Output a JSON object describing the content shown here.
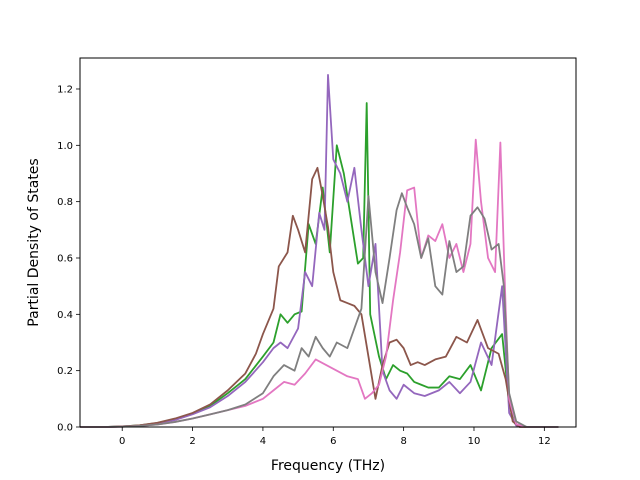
{
  "chart_data": {
    "type": "line",
    "title": "",
    "xlabel": "Frequency (THz)",
    "ylabel": "Partial Density of States",
    "xlim": [
      -1.2,
      12.9
    ],
    "ylim": [
      0.0,
      1.31
    ],
    "x_ticks": [
      "0",
      "2",
      "4",
      "6",
      "8",
      "10",
      "12"
    ],
    "x_tick_values": [
      0,
      2,
      4,
      6,
      8,
      10,
      12
    ],
    "y_ticks": [
      "0.0",
      "0.2",
      "0.4",
      "0.6",
      "0.8",
      "1.0",
      "1.2"
    ],
    "y_tick_values": [
      0.0,
      0.2,
      0.4,
      0.6,
      0.8,
      1.0,
      1.2
    ],
    "grid": false,
    "legend": "none",
    "series": [
      {
        "color": "#2ca02c",
        "points": [
          [
            -1.2,
            0
          ],
          [
            -0.5,
            0
          ],
          [
            0,
            0.002
          ],
          [
            0.5,
            0.006
          ],
          [
            1,
            0.014
          ],
          [
            1.5,
            0.028
          ],
          [
            2,
            0.048
          ],
          [
            2.5,
            0.075
          ],
          [
            3,
            0.12
          ],
          [
            3.5,
            0.17
          ],
          [
            4,
            0.25
          ],
          [
            4.3,
            0.3
          ],
          [
            4.5,
            0.4
          ],
          [
            4.7,
            0.37
          ],
          [
            4.9,
            0.4
          ],
          [
            5.1,
            0.41
          ],
          [
            5.3,
            0.72
          ],
          [
            5.5,
            0.65
          ],
          [
            5.7,
            0.85
          ],
          [
            5.9,
            0.62
          ],
          [
            6.1,
            1.0
          ],
          [
            6.3,
            0.9
          ],
          [
            6.5,
            0.74
          ],
          [
            6.7,
            0.58
          ],
          [
            6.85,
            0.6
          ],
          [
            6.95,
            1.15
          ],
          [
            7.05,
            0.4
          ],
          [
            7.3,
            0.25
          ],
          [
            7.5,
            0.17
          ],
          [
            7.7,
            0.22
          ],
          [
            7.9,
            0.2
          ],
          [
            8.1,
            0.19
          ],
          [
            8.3,
            0.16
          ],
          [
            8.5,
            0.15
          ],
          [
            8.7,
            0.14
          ],
          [
            9,
            0.14
          ],
          [
            9.3,
            0.18
          ],
          [
            9.6,
            0.17
          ],
          [
            9.9,
            0.22
          ],
          [
            10.2,
            0.13
          ],
          [
            10.5,
            0.28
          ],
          [
            10.8,
            0.33
          ],
          [
            11,
            0.08
          ],
          [
            11.2,
            0.01
          ],
          [
            11.5,
            0
          ],
          [
            12.4,
            0
          ]
        ]
      },
      {
        "color": "#9467bd",
        "points": [
          [
            -1.2,
            0
          ],
          [
            -0.5,
            0
          ],
          [
            0,
            0.002
          ],
          [
            0.5,
            0.005
          ],
          [
            1,
            0.012
          ],
          [
            1.5,
            0.025
          ],
          [
            2,
            0.045
          ],
          [
            2.5,
            0.07
          ],
          [
            3,
            0.11
          ],
          [
            3.5,
            0.16
          ],
          [
            4,
            0.23
          ],
          [
            4.3,
            0.28
          ],
          [
            4.5,
            0.3
          ],
          [
            4.7,
            0.28
          ],
          [
            5,
            0.35
          ],
          [
            5.2,
            0.55
          ],
          [
            5.4,
            0.5
          ],
          [
            5.6,
            0.76
          ],
          [
            5.75,
            0.7
          ],
          [
            5.85,
            1.25
          ],
          [
            6,
            0.95
          ],
          [
            6.2,
            0.9
          ],
          [
            6.4,
            0.8
          ],
          [
            6.6,
            0.92
          ],
          [
            6.8,
            0.7
          ],
          [
            7,
            0.5
          ],
          [
            7.2,
            0.65
          ],
          [
            7.4,
            0.2
          ],
          [
            7.6,
            0.13
          ],
          [
            7.8,
            0.1
          ],
          [
            8,
            0.15
          ],
          [
            8.3,
            0.12
          ],
          [
            8.6,
            0.11
          ],
          [
            9,
            0.13
          ],
          [
            9.3,
            0.16
          ],
          [
            9.6,
            0.12
          ],
          [
            9.9,
            0.16
          ],
          [
            10.2,
            0.3
          ],
          [
            10.5,
            0.22
          ],
          [
            10.8,
            0.5
          ],
          [
            11,
            0.05
          ],
          [
            11.2,
            0.005
          ],
          [
            11.5,
            0
          ],
          [
            12.4,
            0
          ]
        ]
      },
      {
        "color": "#8c564b",
        "points": [
          [
            -1.2,
            0
          ],
          [
            -0.5,
            0
          ],
          [
            0,
            0.002
          ],
          [
            0.5,
            0.006
          ],
          [
            1,
            0.015
          ],
          [
            1.5,
            0.03
          ],
          [
            2,
            0.05
          ],
          [
            2.5,
            0.08
          ],
          [
            3,
            0.13
          ],
          [
            3.5,
            0.19
          ],
          [
            3.8,
            0.26
          ],
          [
            4,
            0.33
          ],
          [
            4.3,
            0.42
          ],
          [
            4.45,
            0.57
          ],
          [
            4.7,
            0.62
          ],
          [
            4.85,
            0.75
          ],
          [
            5,
            0.7
          ],
          [
            5.2,
            0.62
          ],
          [
            5.4,
            0.88
          ],
          [
            5.55,
            0.92
          ],
          [
            5.7,
            0.82
          ],
          [
            5.85,
            0.71
          ],
          [
            6,
            0.55
          ],
          [
            6.2,
            0.45
          ],
          [
            6.4,
            0.44
          ],
          [
            6.6,
            0.43
          ],
          [
            6.8,
            0.4
          ],
          [
            7,
            0.25
          ],
          [
            7.2,
            0.1
          ],
          [
            7.4,
            0.22
          ],
          [
            7.6,
            0.3
          ],
          [
            7.8,
            0.31
          ],
          [
            8,
            0.28
          ],
          [
            8.2,
            0.22
          ],
          [
            8.4,
            0.23
          ],
          [
            8.6,
            0.22
          ],
          [
            8.9,
            0.24
          ],
          [
            9.2,
            0.25
          ],
          [
            9.5,
            0.32
          ],
          [
            9.8,
            0.3
          ],
          [
            10.1,
            0.38
          ],
          [
            10.4,
            0.28
          ],
          [
            10.7,
            0.26
          ],
          [
            10.9,
            0.17
          ],
          [
            11.1,
            0.02
          ],
          [
            11.3,
            0
          ],
          [
            12.4,
            0
          ]
        ]
      },
      {
        "color": "#e377c2",
        "points": [
          [
            -1.2,
            0
          ],
          [
            -0.5,
            0
          ],
          [
            0,
            0.001
          ],
          [
            0.5,
            0.004
          ],
          [
            1,
            0.009
          ],
          [
            1.5,
            0.018
          ],
          [
            2,
            0.03
          ],
          [
            2.5,
            0.045
          ],
          [
            3,
            0.06
          ],
          [
            3.5,
            0.075
          ],
          [
            4,
            0.1
          ],
          [
            4.3,
            0.13
          ],
          [
            4.6,
            0.16
          ],
          [
            4.9,
            0.15
          ],
          [
            5.2,
            0.19
          ],
          [
            5.5,
            0.24
          ],
          [
            5.8,
            0.22
          ],
          [
            6.1,
            0.2
          ],
          [
            6.4,
            0.18
          ],
          [
            6.7,
            0.17
          ],
          [
            6.9,
            0.1
          ],
          [
            7.1,
            0.12
          ],
          [
            7.3,
            0.15
          ],
          [
            7.5,
            0.25
          ],
          [
            7.7,
            0.45
          ],
          [
            7.9,
            0.62
          ],
          [
            8.1,
            0.84
          ],
          [
            8.3,
            0.85
          ],
          [
            8.5,
            0.6
          ],
          [
            8.7,
            0.68
          ],
          [
            8.9,
            0.66
          ],
          [
            9.1,
            0.72
          ],
          [
            9.3,
            0.6
          ],
          [
            9.5,
            0.65
          ],
          [
            9.7,
            0.55
          ],
          [
            9.9,
            0.65
          ],
          [
            10.05,
            1.02
          ],
          [
            10.2,
            0.8
          ],
          [
            10.4,
            0.6
          ],
          [
            10.6,
            0.55
          ],
          [
            10.75,
            1.01
          ],
          [
            10.9,
            0.42
          ],
          [
            11,
            0.1
          ],
          [
            11.2,
            0.01
          ],
          [
            11.5,
            0
          ],
          [
            12.4,
            0
          ]
        ]
      },
      {
        "color": "#7f7f7f",
        "points": [
          [
            -1.2,
            0
          ],
          [
            -0.5,
            0
          ],
          [
            0,
            0.001
          ],
          [
            0.5,
            0.004
          ],
          [
            1,
            0.009
          ],
          [
            1.5,
            0.018
          ],
          [
            2,
            0.03
          ],
          [
            2.5,
            0.045
          ],
          [
            3,
            0.06
          ],
          [
            3.5,
            0.08
          ],
          [
            4,
            0.12
          ],
          [
            4.3,
            0.18
          ],
          [
            4.6,
            0.22
          ],
          [
            4.9,
            0.2
          ],
          [
            5.1,
            0.28
          ],
          [
            5.3,
            0.25
          ],
          [
            5.5,
            0.32
          ],
          [
            5.7,
            0.28
          ],
          [
            5.9,
            0.25
          ],
          [
            6.1,
            0.3
          ],
          [
            6.4,
            0.28
          ],
          [
            6.6,
            0.35
          ],
          [
            6.8,
            0.42
          ],
          [
            7,
            0.82
          ],
          [
            7.2,
            0.55
          ],
          [
            7.4,
            0.44
          ],
          [
            7.6,
            0.6
          ],
          [
            7.8,
            0.77
          ],
          [
            7.95,
            0.83
          ],
          [
            8.1,
            0.78
          ],
          [
            8.3,
            0.72
          ],
          [
            8.5,
            0.6
          ],
          [
            8.7,
            0.67
          ],
          [
            8.9,
            0.5
          ],
          [
            9.1,
            0.47
          ],
          [
            9.3,
            0.66
          ],
          [
            9.5,
            0.55
          ],
          [
            9.7,
            0.57
          ],
          [
            9.9,
            0.75
          ],
          [
            10.1,
            0.78
          ],
          [
            10.3,
            0.74
          ],
          [
            10.5,
            0.63
          ],
          [
            10.7,
            0.65
          ],
          [
            10.85,
            0.5
          ],
          [
            11,
            0.12
          ],
          [
            11.2,
            0.02
          ],
          [
            11.5,
            0
          ],
          [
            12.4,
            0
          ]
        ]
      }
    ]
  }
}
